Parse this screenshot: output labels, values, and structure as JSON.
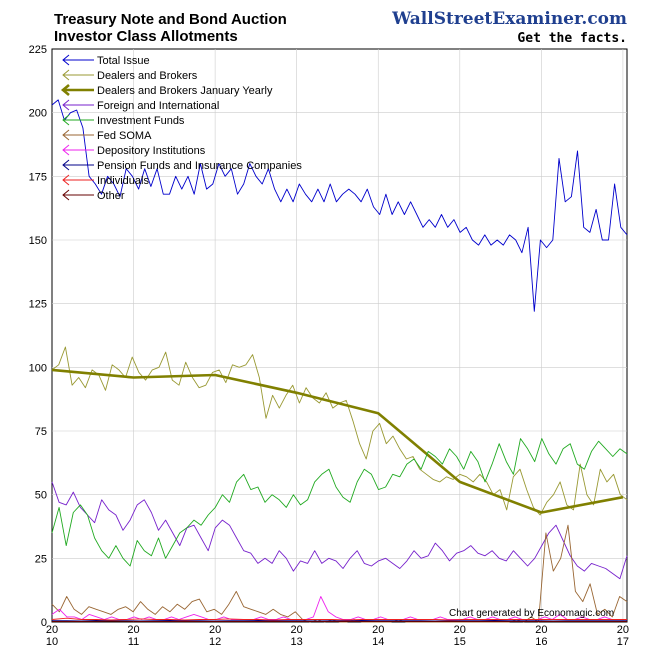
{
  "header": {
    "title_line1": "Treasury Note and Bond Auction",
    "title_line2": "Investor Class Allotments",
    "brand": "WallStreetExaminer.com",
    "slogan": "Get the facts."
  },
  "credit": "Chart generated by Economagic.com",
  "chart_data": {
    "type": "line",
    "title": "Treasury Note and Bond Auction Investor Class Allotments",
    "ylim": [
      0,
      225
    ],
    "y_ticks": [
      0,
      25,
      50,
      75,
      100,
      125,
      150,
      175,
      200,
      225
    ],
    "x_ticks": [
      {
        "x": 2010,
        "top": "20",
        "bottom": "10"
      },
      {
        "x": 2011,
        "top": "20",
        "bottom": "11"
      },
      {
        "x": 2012,
        "top": "20",
        "bottom": "12"
      },
      {
        "x": 2013,
        "top": "20",
        "bottom": "13"
      },
      {
        "x": 2014,
        "top": "20",
        "bottom": "14"
      },
      {
        "x": 2015,
        "top": "20",
        "bottom": "15"
      },
      {
        "x": 2016,
        "top": "20",
        "bottom": "16"
      },
      {
        "x": 2017,
        "top": "20",
        "bottom": "17"
      }
    ],
    "xlim": [
      2010.0,
      2017.05
    ],
    "legend_position": "top-left",
    "grid": true,
    "series": [
      {
        "name": "Total Issue",
        "color": "#0000cc",
        "width": 0.9,
        "x_start": 2010.0,
        "x_end": 2017.05,
        "values": [
          203,
          205,
          197,
          200,
          201,
          194,
          175,
          172,
          168,
          175,
          172,
          167,
          178,
          175,
          170,
          178,
          171,
          178,
          168,
          168,
          175,
          170,
          175,
          168,
          180,
          170,
          172,
          180,
          175,
          178,
          168,
          172,
          180,
          175,
          172,
          178,
          170,
          165,
          170,
          165,
          172,
          168,
          165,
          170,
          165,
          172,
          165,
          168,
          170,
          168,
          165,
          170,
          163,
          160,
          168,
          160,
          165,
          160,
          165,
          160,
          155,
          158,
          155,
          160,
          155,
          158,
          153,
          155,
          150,
          148,
          152,
          148,
          150,
          148,
          152,
          150,
          145,
          155,
          122,
          150,
          147,
          150,
          182,
          165,
          167,
          185,
          155,
          153,
          162,
          150,
          150,
          172,
          155,
          152
        ]
      },
      {
        "name": "Dealers and Brokers",
        "color": "#999933",
        "width": 0.9,
        "x_start": 2010.0,
        "x_end": 2017.05,
        "values": [
          99,
          101,
          108,
          93,
          96,
          92,
          99,
          97,
          91,
          101,
          99,
          96,
          104,
          98,
          95,
          99,
          100,
          106,
          95,
          93,
          102,
          96,
          92,
          93,
          98,
          99,
          94,
          101,
          100,
          101,
          105,
          96,
          80,
          89,
          84,
          89,
          93,
          86,
          92,
          88,
          86,
          90,
          84,
          86,
          87,
          79,
          70,
          64,
          75,
          78,
          70,
          73,
          68,
          64,
          65,
          60,
          58,
          56,
          55,
          57,
          56,
          58,
          57,
          55,
          58,
          55,
          50,
          52,
          44,
          57,
          60,
          52,
          45,
          42,
          47,
          50,
          55,
          46,
          44,
          62,
          50,
          46,
          60,
          55,
          58,
          50,
          48
        ]
      },
      {
        "name": "Dealers and Brokers January Yearly",
        "color": "#808000",
        "width": 2.6,
        "x": [
          2010.0,
          2011.0,
          2012.0,
          2013.0,
          2014.0,
          2015.0,
          2016.0,
          2017.0
        ],
        "values": [
          99,
          96,
          97,
          90,
          82,
          55,
          43,
          49
        ]
      },
      {
        "name": "Foreign and International",
        "color": "#7722cc",
        "width": 0.9,
        "x_start": 2010.0,
        "x_end": 2017.05,
        "values": [
          55,
          47,
          46,
          51,
          45,
          42,
          39,
          48,
          44,
          42,
          36,
          40,
          46,
          48,
          43,
          36,
          40,
          35,
          30,
          37,
          38,
          33,
          28,
          37,
          40,
          38,
          33,
          28,
          27,
          23,
          25,
          23,
          28,
          25,
          20,
          24,
          23,
          28,
          23,
          25,
          24,
          21,
          25,
          28,
          23,
          22,
          24,
          25,
          23,
          21,
          24,
          28,
          25,
          26,
          31,
          28,
          24,
          27,
          28,
          30,
          27,
          26,
          28,
          25,
          24,
          28,
          25,
          22,
          25,
          30,
          35,
          38,
          32,
          26,
          22,
          20,
          23,
          22,
          21,
          19,
          17,
          26
        ]
      },
      {
        "name": "Investment Funds",
        "color": "#22aa22",
        "width": 0.9,
        "x_start": 2010.0,
        "x_end": 2017.05,
        "values": [
          35,
          45,
          30,
          43,
          46,
          42,
          33,
          28,
          25,
          30,
          25,
          22,
          32,
          28,
          26,
          33,
          25,
          30,
          35,
          37,
          40,
          38,
          42,
          45,
          50,
          47,
          55,
          58,
          52,
          53,
          47,
          50,
          48,
          45,
          50,
          46,
          48,
          55,
          58,
          60,
          53,
          49,
          47,
          55,
          60,
          58,
          52,
          53,
          58,
          57,
          62,
          64,
          60,
          67,
          65,
          62,
          68,
          65,
          60,
          67,
          63,
          55,
          62,
          70,
          63,
          58,
          72,
          68,
          63,
          72,
          66,
          62,
          68,
          70,
          62,
          60,
          67,
          71,
          68,
          65,
          68,
          66
        ]
      },
      {
        "name": "Fed SOMA",
        "color": "#996633",
        "width": 0.9,
        "x_start": 2010.0,
        "x_end": 2017.05,
        "values": [
          7,
          4,
          10,
          5,
          3,
          6,
          5,
          4,
          3,
          5,
          6,
          4,
          8,
          5,
          3,
          6,
          4,
          7,
          5,
          8,
          9,
          4,
          5,
          3,
          7,
          12,
          6,
          5,
          4,
          3,
          5,
          3,
          2,
          4,
          1,
          0,
          1,
          0,
          1,
          0,
          0,
          1,
          0,
          0,
          0,
          0,
          0,
          1,
          0,
          0,
          0,
          0,
          0,
          0,
          0,
          0,
          0,
          0,
          0,
          0,
          0,
          0,
          0,
          1,
          0,
          2,
          0,
          35,
          20,
          25,
          38,
          12,
          8,
          15,
          3,
          5,
          2,
          10,
          8
        ]
      },
      {
        "name": "Depository Institutions",
        "color": "#ee22ee",
        "width": 0.9,
        "x_start": 2010.0,
        "x_end": 2017.05,
        "values": [
          3,
          5,
          2,
          2,
          1,
          3,
          2,
          1,
          2,
          1,
          1,
          2,
          1,
          2,
          1,
          1,
          2,
          1,
          2,
          3,
          2,
          1,
          1,
          2,
          1,
          1,
          1,
          1,
          2,
          1,
          1,
          2,
          1,
          1,
          1,
          2,
          10,
          4,
          2,
          1,
          1,
          2,
          1,
          1,
          2,
          1,
          1,
          1,
          2,
          1,
          1,
          1,
          2,
          1,
          1,
          1,
          2,
          1,
          1,
          2,
          1,
          1,
          2,
          1,
          1,
          1,
          2,
          1,
          3,
          1,
          1,
          2,
          1,
          1,
          2,
          1,
          1,
          1
        ]
      },
      {
        "name": "Pension Funds and Insurance Companies",
        "color": "#000088",
        "width": 0.9,
        "x_start": 2010.0,
        "x_end": 2017.05,
        "values": [
          0.5,
          0.5,
          0.4,
          0.6,
          0.5,
          0.5,
          0.4,
          0.5,
          0.6,
          0.5,
          0.5,
          0.4,
          0.5,
          0.5,
          0.6,
          0.5,
          0.5,
          0.5,
          0.4,
          0.5,
          0.5,
          0.6,
          0.5,
          0.5,
          0.5,
          0.5,
          0.4,
          0.5,
          0.5,
          0.5,
          0.6,
          0.5,
          0.5,
          0.5,
          0.4,
          0.5,
          0.5,
          0.5,
          0.5,
          0.5
        ]
      },
      {
        "name": "Individuals",
        "color": "#ee2222",
        "width": 0.9,
        "x_start": 2010.0,
        "x_end": 2017.05,
        "values": [
          1,
          1.5,
          1,
          1,
          0.8,
          1,
          1.2,
          1,
          1,
          0.8,
          1,
          1,
          1.2,
          1,
          1,
          0.8,
          1,
          1,
          1,
          1,
          0.8,
          1,
          1,
          1,
          1,
          1,
          1,
          0.8,
          1,
          1,
          1,
          1,
          1,
          1,
          1,
          1,
          1,
          1,
          1,
          1
        ]
      },
      {
        "name": "Other",
        "color": "#660000",
        "width": 0.9,
        "x_start": 2010.0,
        "x_end": 2017.05,
        "values": [
          0.2,
          0.2,
          0.3,
          0.2,
          0.2,
          0.2,
          0.2,
          0.2,
          0.2,
          0.2,
          0.2,
          0.2,
          0.2,
          0.2,
          0.2,
          0.2,
          0.2,
          0.2,
          0.2,
          0.2
        ]
      }
    ]
  }
}
